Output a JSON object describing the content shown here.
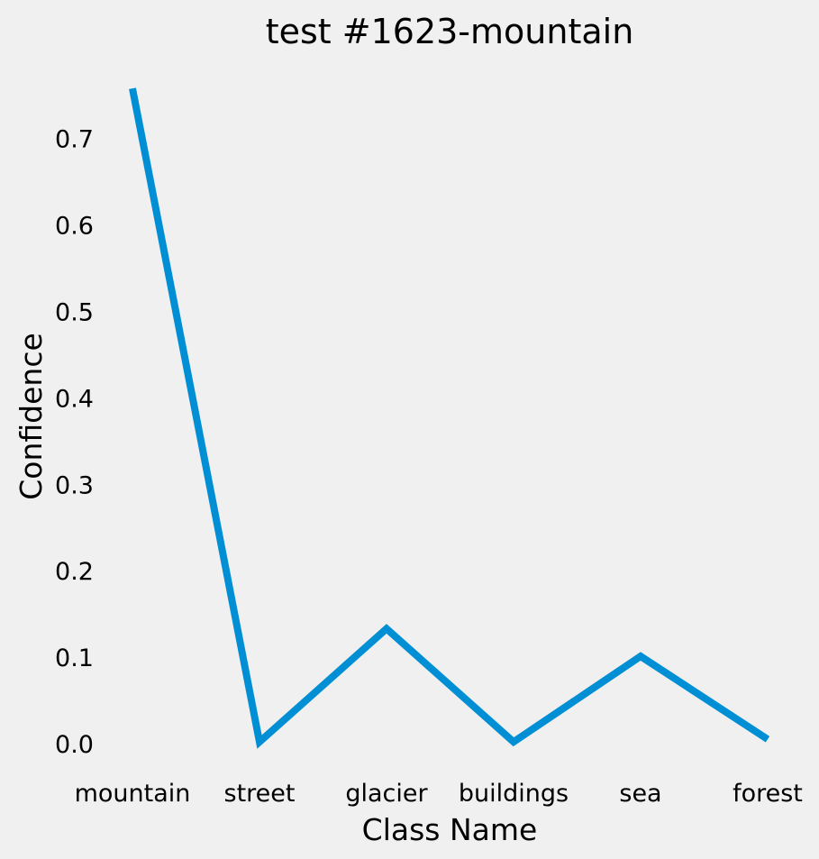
{
  "chart_data": {
    "type": "line",
    "title": "test #1623-mountain",
    "xlabel": "Class Name",
    "ylabel": "Confidence",
    "categories": [
      "mountain",
      "street",
      "glacier",
      "buildings",
      "sea",
      "forest"
    ],
    "series": [
      {
        "values": [
          0.758,
          0.002,
          0.133,
          0.002,
          0.101,
          0.005
        ],
        "color": "#008fd5"
      }
    ],
    "yticks": [
      0.0,
      0.1,
      0.2,
      0.3,
      0.4,
      0.5,
      0.6,
      0.7
    ],
    "ytick_labels": [
      "0.0",
      "0.1",
      "0.2",
      "0.3",
      "0.4",
      "0.5",
      "0.6",
      "0.7"
    ],
    "ylim": [
      0.0,
      0.758
    ],
    "grid": false,
    "legend": "none",
    "background": "#f0f0f0"
  }
}
